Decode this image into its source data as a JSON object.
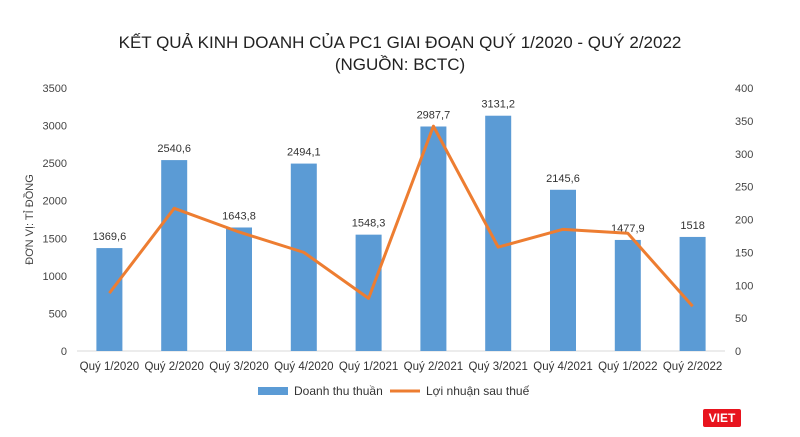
{
  "chart_data": {
    "type": "bar+line",
    "title": "KẾT QUẢ KINH DOANH CỦA PC1 GIAI ĐOẠN QUÝ 1/2020 - QUÝ 2/2022",
    "subtitle": "(NGUỒN: BCTC)",
    "ylabel": "ĐƠN VỊ: TỈ ĐỒNG",
    "categories": [
      "Quý 1/2020",
      "Quý 2/2020",
      "Quý 3/2020",
      "Quý 4/2020",
      "Quý 1/2021",
      "Quý 2/2021",
      "Quý 3/2021",
      "Quý 4/2021",
      "Quý 1/2022",
      "Quý 2/2022"
    ],
    "ylim_left": [
      0,
      3500
    ],
    "yticks_left": [
      0,
      500,
      1000,
      1500,
      2000,
      2500,
      3000,
      3500
    ],
    "ylim_right": [
      0,
      400
    ],
    "yticks_right": [
      0,
      50,
      100,
      150,
      200,
      250,
      300,
      350,
      400
    ],
    "series": [
      {
        "name": "Doanh thu thuần",
        "type": "bar",
        "axis": "left",
        "color": "#5b9bd5",
        "values": [
          1369.6,
          2540.6,
          1643.8,
          2494.1,
          1548.3,
          2987.7,
          3131.2,
          2145.6,
          1477.9,
          1518
        ],
        "labels": [
          "1369,6",
          "2540,6",
          "1643,8",
          "2494,1",
          "1548,3",
          "2987,7",
          "3131,2",
          "2145,6",
          "1477,9",
          "1518"
        ]
      },
      {
        "name": "Lợi nhuận sau thuế",
        "type": "line",
        "axis": "right",
        "color": "#ed7d31",
        "values": [
          88,
          217,
          181,
          150,
          80,
          342,
          158,
          185,
          179,
          68
        ]
      }
    ],
    "legend_position": "bottom",
    "grid": false
  },
  "logo": "VIET"
}
